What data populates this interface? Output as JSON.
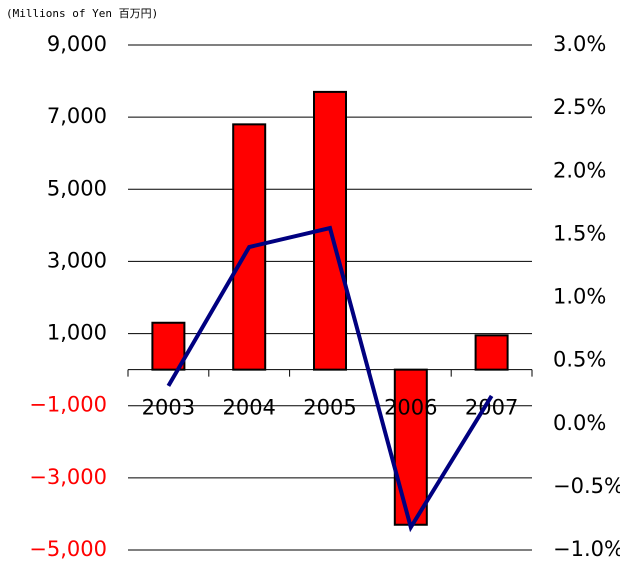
{
  "chart_data": {
    "type": "bar",
    "y_axis_label": "(Millions of Yen 百万円)",
    "categories": [
      "2003",
      "2004",
      "2005",
      "2006",
      "2007"
    ],
    "series": [
      {
        "type": "bar",
        "color": "#ff0000",
        "values": [
          1300,
          6800,
          7700,
          -4300,
          950
        ]
      },
      {
        "type": "line",
        "color": "#000080",
        "axis": "y2",
        "values": [
          0.3,
          1.4,
          1.55,
          -0.82,
          0.22
        ]
      }
    ],
    "ylim": [
      -5000,
      9000
    ],
    "yticks": [
      {
        "value": 9000,
        "label": "9,000"
      },
      {
        "value": 7000,
        "label": "7,000"
      },
      {
        "value": 5000,
        "label": "5,000"
      },
      {
        "value": 3000,
        "label": "3,000"
      },
      {
        "value": 1000,
        "label": "1,000"
      },
      {
        "value": -1000,
        "label": "−1,000"
      },
      {
        "value": -3000,
        "label": "−3,000"
      },
      {
        "value": -5000,
        "label": "−5,000"
      }
    ],
    "negative_tick_color": "#ff0000",
    "y2lim": [
      -1,
      3
    ],
    "y2ticks": [
      {
        "value": 3,
        "label": "3.0%"
      },
      {
        "value": 2.5,
        "label": "2.5%"
      },
      {
        "value": 2,
        "label": "2.0%"
      },
      {
        "value": 1.5,
        "label": "1.5%"
      },
      {
        "value": 1,
        "label": "1.0%"
      },
      {
        "value": 0.5,
        "label": "0.5%"
      },
      {
        "value": 0,
        "label": "0.0%"
      },
      {
        "value": -0.5,
        "label": "−0.5%"
      },
      {
        "value": -1,
        "label": "−1.0%"
      }
    ],
    "grid": true
  }
}
